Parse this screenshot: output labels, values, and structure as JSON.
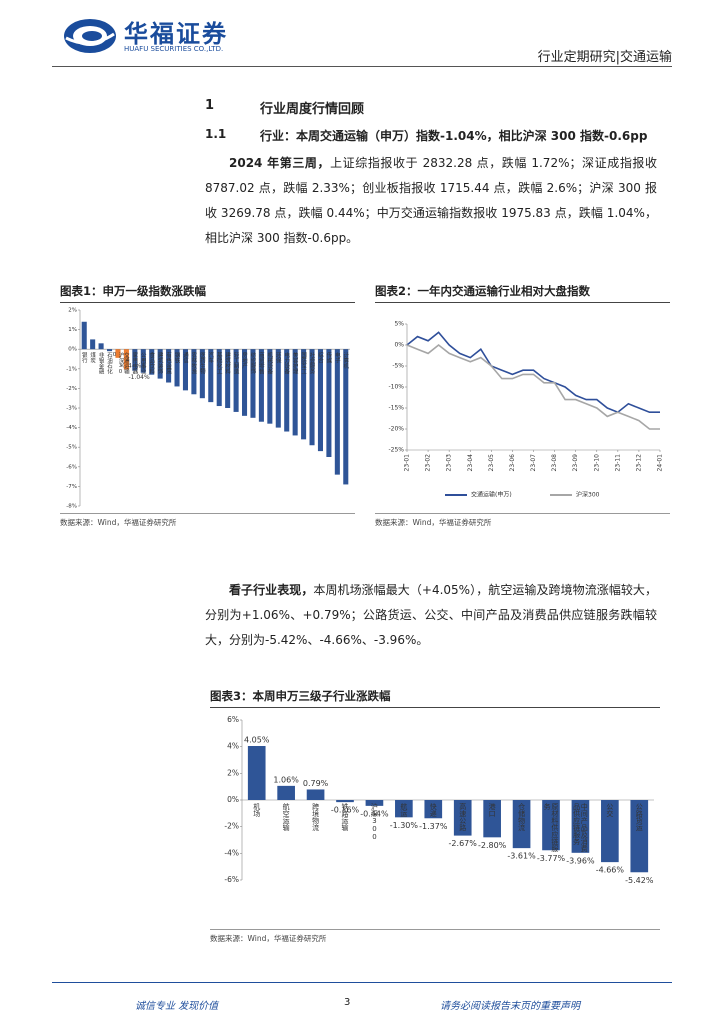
{
  "header": {
    "brand": "华福证券",
    "brand_en": "HUAFU SECURITIES CO.,LTD.",
    "report_type": "行业定期研究|交通运输"
  },
  "section": {
    "number": "1",
    "title": "行业周度行情回顾"
  },
  "subsection": {
    "number": "1.1",
    "title": "行业：本周交通运输（申万）指数-1.04%，相比沪深 300 指数-0.6pp"
  },
  "paragraphs": [
    {
      "lead": "2024 年第三周，",
      "text": "上证综指报收于 2832.28 点，跌幅 1.72%；深证成指报收 8787.02 点，跌幅 2.33%；创业板指报收 1715.44 点，跌幅 2.6%；沪深 300 报收 3269.78 点，跌幅 0.44%；中万交通运输指数报收 1975.83 点，跌幅 1.04%，相比沪深 300 指数-0.6pp。"
    },
    {
      "lead": "看子行业表现，",
      "text": "本周机场涨幅最大（+4.05%），航空运输及跨境物流涨幅较大，分别为+1.06%、+0.79%；公路货运、公交、中间产品及消费品供应链服务跌幅较大，分别为-5.42%、-4.66%、-3.96%。"
    }
  ],
  "chart_data": [
    {
      "type": "bar",
      "title": "图表1：申万一级指数涨跌幅",
      "source": "数据来源：Wind，华福证券研究所",
      "categories": [
        "银行",
        "煤炭",
        "非银金融",
        "石油石化",
        "沪深300",
        "交通运输",
        "家用电器",
        "公用事业",
        "食品饮料",
        "建筑装饰",
        "有色金属",
        "钢铁",
        "通信",
        "农林牧渔",
        "医药生物",
        "汽车",
        "基础化工",
        "建筑材料",
        "轻工制造",
        "房地产",
        "纺织服饰",
        "商贸零售",
        "机械设备",
        "环保",
        "电力设备",
        "美容护理",
        "国防军工",
        "社会服务",
        "综合",
        "传媒",
        "电子",
        "计算机"
      ],
      "values": [
        1.4,
        0.5,
        0.3,
        -0.1,
        -0.44,
        -1.04,
        -1.1,
        -1.2,
        -1.3,
        -1.5,
        -1.7,
        -1.9,
        -2.1,
        -2.3,
        -2.5,
        -2.7,
        -2.9,
        -3.0,
        -3.2,
        -3.4,
        -3.5,
        -3.7,
        -3.8,
        -4.0,
        -4.2,
        -4.4,
        -4.6,
        -4.9,
        -5.2,
        -5.5,
        -6.4,
        -6.9
      ],
      "value_labels": [
        null,
        null,
        null,
        null,
        "-0.44%",
        "-1.04%",
        null,
        null,
        null,
        null,
        null,
        null,
        null,
        null,
        null,
        null,
        null,
        null,
        null,
        null,
        null,
        null,
        null,
        null,
        null,
        null,
        null,
        null,
        null,
        null,
        null,
        null
      ],
      "colors": [
        "#2f5597",
        "#2f5597",
        "#2f5597",
        "#2f5597",
        "#ed7d31",
        "#ed7d31",
        "#2f5597",
        "#2f5597",
        "#2f5597",
        "#2f5597",
        "#2f5597",
        "#2f5597",
        "#2f5597",
        "#2f5597",
        "#2f5597",
        "#2f5597",
        "#2f5597",
        "#2f5597",
        "#2f5597",
        "#2f5597",
        "#2f5597",
        "#2f5597",
        "#2f5597",
        "#2f5597",
        "#2f5597",
        "#2f5597",
        "#2f5597",
        "#2f5597",
        "#2f5597",
        "#2f5597",
        "#2f5597",
        "#2f5597"
      ],
      "ylim": [
        -8,
        2
      ],
      "yticks": [
        {
          "value": -8,
          "label": "-8%"
        },
        {
          "value": -7,
          "label": "-7%"
        },
        {
          "value": -6,
          "label": "-6%"
        },
        {
          "value": -5,
          "label": "-5%"
        },
        {
          "value": -4,
          "label": "-4%"
        },
        {
          "value": -3,
          "label": "-3%"
        },
        {
          "value": -2,
          "label": "-2%"
        },
        {
          "value": -1,
          "label": "-1%"
        },
        {
          "value": 0,
          "label": "0%"
        },
        {
          "value": 1,
          "label": "1%"
        },
        {
          "value": 2,
          "label": "2%"
        }
      ]
    },
    {
      "type": "line",
      "title": "图表2：一年内交通运输行业相对大盘指数",
      "source": "数据来源：Wind，华福证券研究所",
      "categories": [
        "23-01",
        null,
        "23-02",
        null,
        "23-03",
        null,
        "23-04",
        null,
        "23-05",
        null,
        "23-06",
        null,
        "23-07",
        null,
        "23-08",
        null,
        "23-09",
        null,
        "23-10",
        null,
        "23-11",
        null,
        "23-12",
        null,
        "24-01"
      ],
      "series": [
        {
          "name": "交通运输(申万)",
          "color": "#2f4f9a",
          "values": [
            0,
            2,
            1,
            3,
            0,
            -2,
            -3,
            -1,
            -5,
            -6,
            -7,
            -6,
            -6,
            -8,
            -9,
            -10,
            -12,
            -13,
            -13,
            -15,
            -16,
            -14,
            -15,
            -16,
            -16
          ]
        },
        {
          "name": "沪深300",
          "color": "#a6a6a6",
          "values": [
            0,
            -1,
            -2,
            0,
            -2,
            -3,
            -4,
            -3,
            -5,
            -8,
            -8,
            -7,
            -7,
            -9,
            -9,
            -13,
            -13,
            -14,
            -15,
            -17,
            -16,
            -17,
            -18,
            -20,
            -20
          ]
        }
      ],
      "ylim": [
        -25,
        5
      ],
      "yticks": [
        {
          "value": -25,
          "label": "-25%"
        },
        {
          "value": -20,
          "label": "-20%"
        },
        {
          "value": -15,
          "label": "-15%"
        },
        {
          "value": -10,
          "label": "-10%"
        },
        {
          "value": -5,
          "label": "-5%"
        },
        {
          "value": 0,
          "label": "0%"
        },
        {
          "value": 5,
          "label": "5%"
        }
      ],
      "legend": "bottom"
    },
    {
      "type": "bar",
      "title": "图表3：本周申万三级子行业涨跌幅",
      "source": "数据来源：Wind，华福证券研究所",
      "categories": [
        "机场",
        "航空运输",
        "跨境物流",
        "铁路运输",
        "沪深300",
        "航运",
        "快递",
        "高速公路",
        "港口",
        "仓储物流",
        "原材料供应链服务",
        "中间产品及消费品供应链服务",
        "公交",
        "公路货运"
      ],
      "values": [
        4.05,
        1.06,
        0.79,
        -0.16,
        -0.44,
        -1.3,
        -1.37,
        -2.67,
        -2.8,
        -3.61,
        -3.77,
        -3.96,
        -4.66,
        -5.42
      ],
      "value_labels": [
        "4.05%",
        "1.06%",
        "0.79%",
        "-0.16%",
        "-0.44%",
        "-1.30%",
        "-1.37%",
        "-2.67%",
        "-2.80%",
        "-3.61%",
        "-3.77%",
        "-3.96%",
        "-4.66%",
        "-5.42%"
      ],
      "color": "#2f5597",
      "ylim": [
        -6,
        6
      ],
      "yticks": [
        {
          "value": -6,
          "label": "-6%"
        },
        {
          "value": -4,
          "label": "-4%"
        },
        {
          "value": -2,
          "label": "-2%"
        },
        {
          "value": 0,
          "label": "0%"
        },
        {
          "value": 2,
          "label": "2%"
        },
        {
          "value": 4,
          "label": "4%"
        },
        {
          "value": 6,
          "label": "6%"
        }
      ]
    }
  ],
  "footer": {
    "left": "诚信专业  发现价值",
    "page": "3",
    "right": "请务必阅读报告末页的重要声明"
  }
}
